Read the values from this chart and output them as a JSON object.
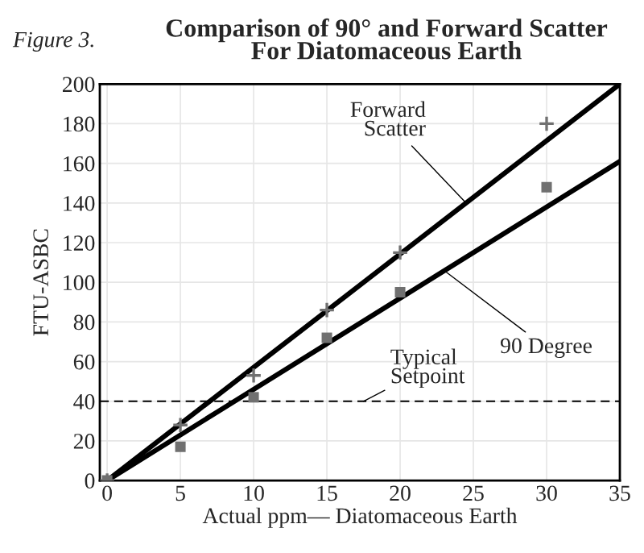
{
  "chart_data": {
    "type": "scatter",
    "title": "Comparison of 90° and Forward Scatter\nFor Diatomaceous Earth",
    "xlabel": "Actual ppm— Diatomaceous Earth",
    "ylabel": "FTU-ASBC",
    "series": [
      {
        "marker": "cross",
        "color": "#707070",
        "x": [
          0,
          5,
          10,
          15,
          20,
          30
        ],
        "values": [
          0,
          28,
          53,
          86,
          115,
          180
        ]
      },
      {
        "marker": "square",
        "color": "#707070",
        "x": [
          0,
          5,
          10,
          15,
          20,
          30
        ],
        "values": [
          0,
          17,
          42,
          72,
          95,
          148
        ]
      },
      {
        "type": "line",
        "color": "#000000",
        "x": [
          0,
          35
        ],
        "values": [
          0,
          200
        ]
      },
      {
        "type": "line",
        "color": "#000000",
        "x": [
          0,
          35
        ],
        "values": [
          0,
          161
        ]
      }
    ],
    "annotations": [
      "Figure 3.",
      {
        "text": "Forward\nScatter",
        "x": 24.5,
        "y": 140
      },
      {
        "text": "90 Degree",
        "x": 23,
        "y": 106
      }
    ],
    "ref_lines": [
      {
        "axis": "y",
        "value": 40,
        "label": "Typical\nSetpoint",
        "line_style": "dashed",
        "color": "#000000"
      }
    ],
    "xlim": [
      -0.5,
      35
    ],
    "ylim": [
      0,
      200
    ],
    "xticks": [
      0,
      5,
      10,
      15,
      20,
      25,
      30,
      35
    ],
    "yticks": [
      0,
      20,
      40,
      60,
      80,
      100,
      120,
      140,
      160,
      180,
      200
    ],
    "grid": true
  }
}
